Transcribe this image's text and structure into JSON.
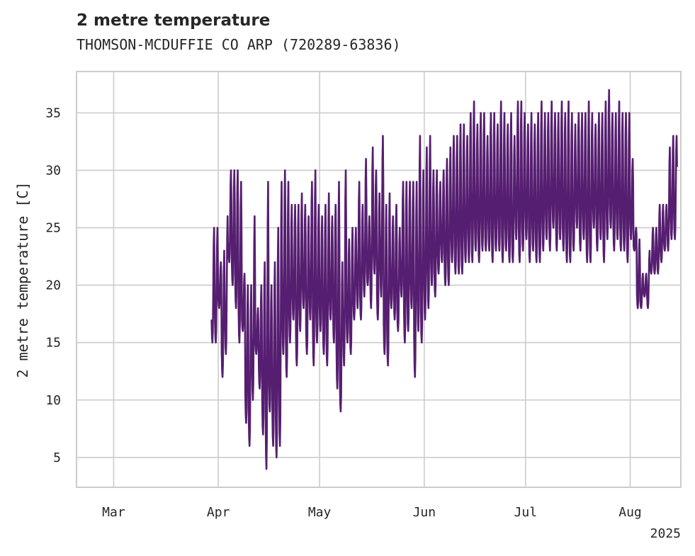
{
  "chart_data": {
    "type": "line",
    "title": "2 metre temperature",
    "subtitle": "THOMSON-MCDUFFIE CO ARP (720289-63836)",
    "xlabel": "",
    "ylabel": "2 metre temperature [C]",
    "xlim": [
      "2025-02-18",
      "2025-08-16"
    ],
    "ylim": [
      2.4,
      38.6
    ],
    "x_ticks": [
      {
        "date": "2025-03-01",
        "label": "Mar"
      },
      {
        "date": "2025-04-01",
        "label": "Apr"
      },
      {
        "date": "2025-05-01",
        "label": "May"
      },
      {
        "date": "2025-06-01",
        "label": "Jun"
      },
      {
        "date": "2025-07-01",
        "label": "Jul"
      },
      {
        "date": "2025-08-01",
        "label": "Aug"
      }
    ],
    "x_offset_label": "2025",
    "y_ticks": [
      5,
      10,
      15,
      20,
      25,
      30,
      35
    ],
    "grid": true,
    "legend": "none",
    "colors": {
      "line": "#561e70",
      "grid": "#cccccc",
      "frame": "#cccccc",
      "text": "#262626"
    },
    "series": [
      {
        "x": [
          "2025-03-30",
          "2025-03-31",
          "2025-04-01",
          "2025-04-02",
          "2025-04-03",
          "2025-04-04",
          "2025-04-05",
          "2025-04-06",
          "2025-04-07",
          "2025-04-08",
          "2025-04-09",
          "2025-04-10",
          "2025-04-11",
          "2025-04-12",
          "2025-04-13",
          "2025-04-14",
          "2025-04-15",
          "2025-04-16",
          "2025-04-17",
          "2025-04-18",
          "2025-04-19",
          "2025-04-20",
          "2025-04-21",
          "2025-04-22",
          "2025-04-23",
          "2025-04-24",
          "2025-04-25",
          "2025-04-26",
          "2025-04-27",
          "2025-04-28",
          "2025-04-29",
          "2025-04-30",
          "2025-05-01",
          "2025-05-02",
          "2025-05-03",
          "2025-05-04",
          "2025-05-05",
          "2025-05-06",
          "2025-05-07",
          "2025-05-08",
          "2025-05-09",
          "2025-05-10",
          "2025-05-11",
          "2025-05-12",
          "2025-05-13",
          "2025-05-14",
          "2025-05-15",
          "2025-05-16",
          "2025-05-17",
          "2025-05-18",
          "2025-05-19",
          "2025-05-20",
          "2025-05-21",
          "2025-05-22",
          "2025-05-23",
          "2025-05-24",
          "2025-05-25",
          "2025-05-26",
          "2025-05-27",
          "2025-05-28",
          "2025-05-29",
          "2025-05-30",
          "2025-05-31",
          "2025-06-01",
          "2025-06-02",
          "2025-06-03",
          "2025-06-04",
          "2025-06-05",
          "2025-06-06",
          "2025-06-07",
          "2025-06-08",
          "2025-06-09",
          "2025-06-10",
          "2025-06-11",
          "2025-06-12",
          "2025-06-13",
          "2025-06-14",
          "2025-06-15",
          "2025-06-16",
          "2025-06-17",
          "2025-06-18",
          "2025-06-19",
          "2025-06-20",
          "2025-06-21",
          "2025-06-22",
          "2025-06-23",
          "2025-06-24",
          "2025-06-25",
          "2025-06-26",
          "2025-06-27",
          "2025-06-28",
          "2025-06-29",
          "2025-06-30",
          "2025-07-01",
          "2025-07-02",
          "2025-07-03",
          "2025-07-04",
          "2025-07-05",
          "2025-07-06",
          "2025-07-07",
          "2025-07-08",
          "2025-07-09",
          "2025-07-10",
          "2025-07-11",
          "2025-07-12",
          "2025-07-13",
          "2025-07-14",
          "2025-07-15",
          "2025-07-16",
          "2025-07-17",
          "2025-07-18",
          "2025-07-19",
          "2025-07-20",
          "2025-07-21",
          "2025-07-22",
          "2025-07-23",
          "2025-07-24",
          "2025-07-25",
          "2025-07-26",
          "2025-07-27",
          "2025-07-28",
          "2025-07-29",
          "2025-07-30",
          "2025-07-31",
          "2025-08-01",
          "2025-08-02",
          "2025-08-03",
          "2025-08-04",
          "2025-08-05",
          "2025-08-06",
          "2025-08-07",
          "2025-08-08",
          "2025-08-09",
          "2025-08-10",
          "2025-08-11",
          "2025-08-12",
          "2025-08-13",
          "2025-08-14",
          "2025-08-15"
        ],
        "min": [
          15,
          15,
          18,
          12,
          14,
          22,
          20,
          18,
          15,
          16,
          8,
          6,
          10,
          14,
          11,
          7,
          4,
          9,
          6,
          5,
          6,
          14,
          12,
          15,
          17,
          13,
          16,
          18,
          14,
          17,
          13,
          15,
          16,
          14,
          13,
          17,
          15,
          11,
          9,
          13,
          15,
          14,
          17,
          18,
          17,
          19,
          20,
          18,
          21,
          17,
          19,
          14,
          13,
          18,
          17,
          16,
          19,
          15,
          16,
          18,
          12,
          16,
          15,
          17,
          18,
          20,
          19,
          21,
          22,
          20,
          20,
          22,
          21,
          21,
          21,
          22,
          22,
          22,
          23,
          22,
          23,
          23,
          23,
          22,
          23,
          23,
          22,
          23,
          22,
          22,
          24,
          22,
          23,
          24,
          22,
          23,
          22,
          22,
          23,
          24,
          23,
          25,
          23,
          24,
          23,
          22,
          22,
          23,
          25,
          23,
          24,
          22,
          22,
          25,
          23,
          24,
          22,
          24,
          25,
          23,
          24,
          23,
          23,
          22,
          24,
          23,
          18,
          18,
          19,
          18,
          21,
          21,
          21,
          22,
          23,
          23,
          24,
          24
        ],
        "max": [
          25,
          25,
          22,
          23,
          26,
          30,
          30,
          30,
          29,
          21,
          20,
          20,
          26,
          18,
          20,
          22,
          29,
          20,
          22,
          25,
          29,
          30,
          29,
          27,
          27,
          27,
          28,
          27,
          26,
          29,
          30,
          27,
          26,
          27,
          28,
          26,
          27,
          29,
          22,
          30,
          24,
          25,
          25,
          29,
          27,
          31,
          26,
          32,
          30,
          28,
          33,
          27,
          28,
          26,
          27,
          25,
          29,
          29,
          29,
          29,
          29,
          33,
          30,
          32,
          33,
          30,
          30,
          29,
          30,
          31,
          32,
          33,
          33,
          34,
          34,
          33,
          35,
          36,
          34,
          35,
          35,
          33,
          35,
          35,
          34,
          36,
          35,
          34,
          35,
          33,
          36,
          36,
          35,
          34,
          35,
          34,
          35,
          36,
          35,
          35,
          36,
          35,
          35,
          36,
          35,
          36,
          35,
          34,
          35,
          35,
          35,
          36,
          35,
          34,
          35,
          35,
          36,
          37,
          35,
          35,
          36,
          35,
          35,
          35,
          31,
          25,
          24,
          21,
          21,
          23,
          25,
          25,
          27,
          27,
          27,
          32,
          33,
          33
        ]
      }
    ]
  }
}
